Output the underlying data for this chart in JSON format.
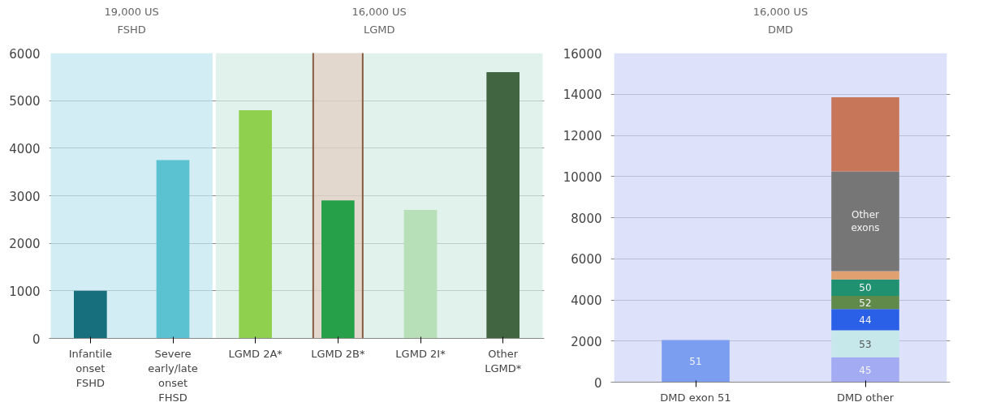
{
  "chart_data": [
    {
      "type": "bar",
      "categories": [
        "Infantile onset FSHD",
        "Severe early/late onset FHSD",
        "LGMD 2A*",
        "LGMD 2B*",
        "LGMD 2I*",
        "Other LGMD*"
      ],
      "values": [
        1000,
        3750,
        4800,
        2900,
        2700,
        5600
      ],
      "colors": [
        "#176f7e",
        "#5bc2d2",
        "#8fd14f",
        "#27a04a",
        "#b7dfb8",
        "#416441"
      ],
      "ylim": [
        0,
        6000
      ],
      "yticks": [
        0,
        1000,
        2000,
        3000,
        4000,
        5000,
        6000
      ],
      "grid": "y",
      "bands": [
        {
          "axis": "x",
          "from": "Infantile onset FSHD",
          "to": "Severe early/late onset FHSD",
          "label": "19,000 US\nFSHD",
          "color": "#bfe6ef"
        },
        {
          "axis": "x",
          "from": "LGMD 2A*",
          "to": "Other LGMD*",
          "label": "16,000 US\nLGMD",
          "color": "#d3ece3"
        },
        {
          "axis": "x",
          "from": "LGMD 2B*",
          "to": "LGMD 2B*",
          "label": null,
          "color": "#e3c6ba"
        }
      ]
    },
    {
      "type": "bar",
      "stacked": true,
      "categories": [
        "DMD exon 51",
        "DMD other"
      ],
      "series": [
        {
          "name": "51",
          "color": "#7b9ef0",
          "values": [
            2050,
            null
          ]
        },
        {
          "name": "45",
          "color": "#a3acf2",
          "values": [
            null,
            1210
          ]
        },
        {
          "name": "53",
          "color": "#c6e8ea",
          "values": [
            null,
            1310
          ]
        },
        {
          "name": "44",
          "color": "#2a5fe8",
          "values": [
            null,
            1040
          ]
        },
        {
          "name": "52",
          "color": "#5f8a4a",
          "values": [
            null,
            640
          ]
        },
        {
          "name": "50",
          "color": "#1f9070",
          "values": [
            null,
            800
          ]
        },
        {
          "color": "#e0a070",
          "values": [
            null,
            400
          ]
        },
        {
          "name": "Other exons",
          "color": "#767676",
          "values": [
            null,
            4850
          ]
        },
        {
          "color": "#c8765a",
          "values": [
            null,
            3600
          ]
        }
      ],
      "ylim": [
        0,
        16000
      ],
      "yticks": [
        0,
        2000,
        4000,
        6000,
        8000,
        10000,
        12000,
        14000,
        16000
      ],
      "grid": "y",
      "bands": [
        {
          "axis": "x",
          "from": "DMD exon 51",
          "to": "DMD other",
          "label": "16,000 US\nDMD",
          "color": "#d0d4f8"
        }
      ]
    }
  ]
}
